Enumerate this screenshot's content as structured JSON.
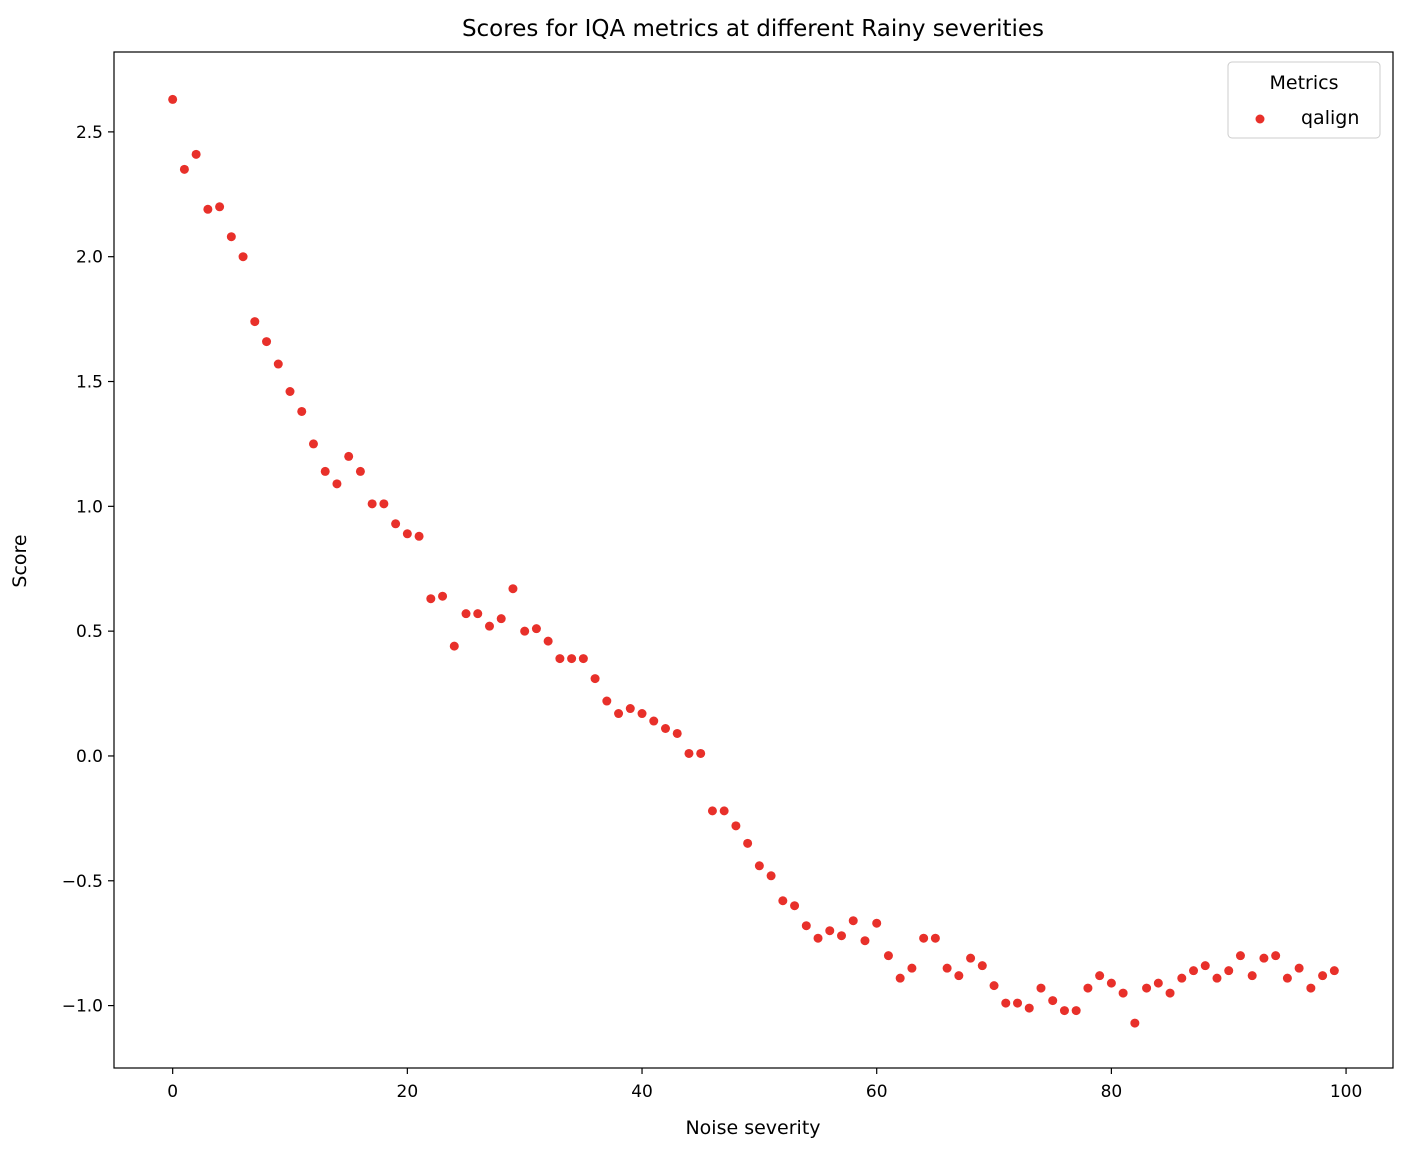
{
  "chart_data": {
    "type": "scatter",
    "title": "Scores for IQA metrics at different Rainy severities",
    "xlabel": "Noise severity",
    "ylabel": "Score",
    "xlim": [
      -5,
      104
    ],
    "ylim": [
      -1.25,
      2.82
    ],
    "xticks": [
      0,
      20,
      40,
      60,
      80,
      100
    ],
    "yticks": [
      -1.0,
      -0.5,
      0.0,
      0.5,
      1.0,
      1.5,
      2.0,
      2.5
    ],
    "ytick_labels": [
      "−1.0",
      "−0.5",
      "0.0",
      "0.5",
      "1.0",
      "1.5",
      "2.0",
      "2.5"
    ],
    "xtick_labels": [
      "0",
      "20",
      "40",
      "60",
      "80",
      "100"
    ],
    "grid": false,
    "legend": {
      "title": "Metrics",
      "placement": "top-right"
    },
    "series": [
      {
        "name": "qalign",
        "color": "#e8302a",
        "x": [
          0,
          1,
          2,
          3,
          4,
          5,
          6,
          7,
          8,
          9,
          10,
          11,
          12,
          13,
          14,
          15,
          16,
          17,
          18,
          19,
          20,
          21,
          22,
          23,
          24,
          25,
          26,
          27,
          28,
          29,
          30,
          31,
          32,
          33,
          34,
          35,
          36,
          37,
          38,
          39,
          40,
          41,
          42,
          43,
          44,
          45,
          46,
          47,
          48,
          49,
          50,
          51,
          52,
          53,
          54,
          55,
          56,
          57,
          58,
          59,
          60,
          61,
          62,
          63,
          64,
          65,
          66,
          67,
          68,
          69,
          70,
          71,
          72,
          73,
          74,
          75,
          76,
          77,
          78,
          79,
          80,
          81,
          82,
          83,
          84,
          85,
          86,
          87,
          88,
          89,
          90,
          91,
          92,
          93,
          94,
          95,
          96,
          97,
          98,
          99
        ],
        "y": [
          2.63,
          2.35,
          2.41,
          2.19,
          2.2,
          2.08,
          2.0,
          1.74,
          1.66,
          1.57,
          1.46,
          1.38,
          1.25,
          1.14,
          1.09,
          1.2,
          1.14,
          1.01,
          1.01,
          0.93,
          0.89,
          0.88,
          0.63,
          0.64,
          0.44,
          0.57,
          0.57,
          0.52,
          0.55,
          0.67,
          0.5,
          0.51,
          0.46,
          0.39,
          0.39,
          0.39,
          0.31,
          0.22,
          0.17,
          0.19,
          0.17,
          0.14,
          0.11,
          0.09,
          0.01,
          0.01,
          -0.22,
          -0.22,
          -0.28,
          -0.35,
          -0.44,
          -0.48,
          -0.58,
          -0.6,
          -0.68,
          -0.73,
          -0.7,
          -0.72,
          -0.66,
          -0.74,
          -0.67,
          -0.8,
          -0.89,
          -0.85,
          -0.73,
          -0.73,
          -0.85,
          -0.88,
          -0.81,
          -0.84,
          -0.92,
          -0.99,
          -0.99,
          -1.01,
          -0.93,
          -0.98,
          -1.02,
          -1.02,
          -0.93,
          -0.88,
          -0.91,
          -0.95,
          -1.07,
          -0.93,
          -0.91,
          -0.95,
          -0.89,
          -0.86,
          -0.84,
          -0.89,
          -0.86,
          -0.8,
          -0.88,
          -0.81,
          -0.8,
          -0.89,
          -0.85,
          -0.93,
          -0.88,
          -0.86
        ]
      }
    ]
  }
}
